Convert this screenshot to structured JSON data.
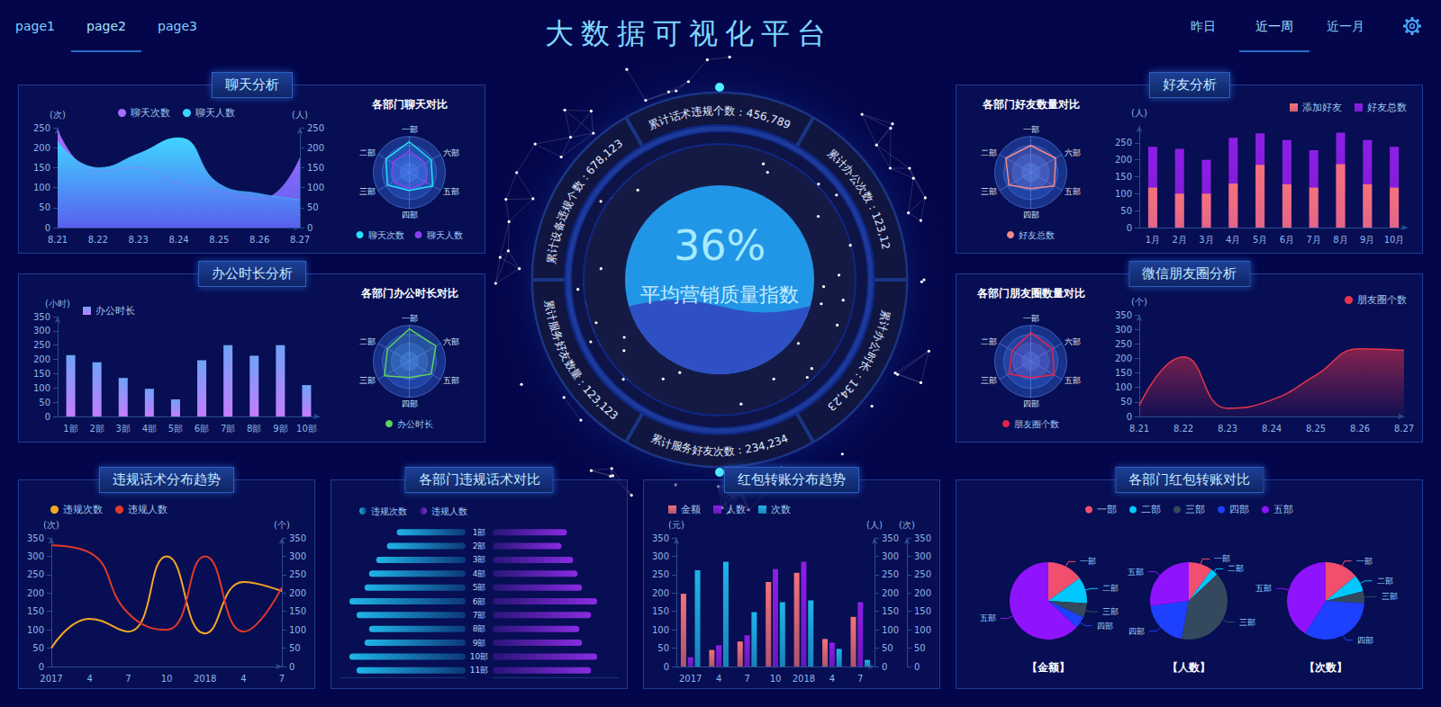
{
  "header": {
    "title": "大数据可视化平台",
    "pages": [
      "page1",
      "page2",
      "page3"
    ],
    "active_page": "page2",
    "ranges": [
      "昨日",
      "近一周",
      "近一月"
    ],
    "active_range": "近一周"
  },
  "center": {
    "value": 36,
    "value_label": "36%",
    "label": "平均营销质量指数",
    "ring": [
      "累计话术违规个数：456,789",
      "累计办公次数：123,12",
      "累计办公时长：134,23",
      "累计服务好友次数：234,234",
      "累计服务好友数量：123,123",
      "累计设备违规个数：678,123"
    ]
  },
  "chart_data": [
    {
      "type": "area",
      "title": "聊天分析",
      "categories": [
        "8.21",
        "8.22",
        "8.23",
        "8.24",
        "8.25",
        "8.26",
        "8.27"
      ],
      "ylabel": "(次)",
      "ylim": [
        0,
        250
      ],
      "yticks": [
        0,
        50,
        100,
        150,
        200,
        250
      ],
      "y2label": "(人)",
      "y2lim": [
        0,
        250
      ],
      "y2ticks": [
        0,
        50,
        100,
        150,
        200,
        250
      ],
      "series": [
        {
          "name": "聊天次数",
          "color": "#a66cff",
          "values": [
            245,
            140,
            150,
            110,
            90,
            70,
            175
          ]
        },
        {
          "name": "聊天人数",
          "color": "#3fd4ff",
          "axis": "y2",
          "values": [
            215,
            150,
            185,
            225,
            110,
            85,
            70
          ]
        }
      ],
      "legend": "top",
      "grid": false
    },
    {
      "type": "radar",
      "title": "各部门聊天对比",
      "indicators": [
        {
          "name": "一部",
          "max": 100
        },
        {
          "name": "二部",
          "max": 100
        },
        {
          "name": "三部",
          "max": 100
        },
        {
          "name": "四部",
          "max": 100
        },
        {
          "name": "五部",
          "max": 100
        },
        {
          "name": "六部",
          "max": 100
        }
      ],
      "series": [
        {
          "name": "聊天次数",
          "color": "#27e0ff",
          "values": [
            85,
            75,
            70,
            50,
            75,
            70
          ]
        },
        {
          "name": "聊天人数",
          "color": "#8a3cf0",
          "values": [
            60,
            55,
            50,
            45,
            55,
            50
          ]
        }
      ],
      "legend": "bottom"
    },
    {
      "type": "bar",
      "title": "办公时长分析",
      "categories": [
        "1部",
        "2部",
        "3部",
        "4部",
        "5部",
        "6部",
        "7部",
        "8部",
        "9部",
        "10部"
      ],
      "ylabel": "(小时)",
      "ylim": [
        0,
        350
      ],
      "yticks": [
        0,
        50,
        100,
        150,
        200,
        250,
        300,
        350
      ],
      "series": [
        {
          "name": "办公时长",
          "color": "#6fa3f7",
          "values": [
            215,
            190,
            135,
            97,
            60,
            197,
            250,
            213,
            250,
            110
          ]
        }
      ],
      "legend": "top-left",
      "grid": false
    },
    {
      "type": "radar",
      "title": "各部门办公时长对比",
      "indicators": [
        {
          "name": "一部",
          "max": 100
        },
        {
          "name": "二部",
          "max": 100
        },
        {
          "name": "三部",
          "max": 100
        },
        {
          "name": "四部",
          "max": 100
        },
        {
          "name": "五部",
          "max": 100
        },
        {
          "name": "六部",
          "max": 100
        }
      ],
      "series": [
        {
          "name": "办公时长",
          "color": "#5fd35f",
          "values": [
            90,
            70,
            80,
            45,
            70,
            85
          ]
        }
      ],
      "legend": "bottom"
    },
    {
      "type": "bar",
      "title": "好友分析",
      "categories": [
        "1月",
        "2月",
        "3月",
        "4月",
        "5月",
        "6月",
        "7月",
        "8月",
        "9月",
        "10月"
      ],
      "ylabel": "(人)",
      "ylim": [
        0,
        300
      ],
      "yticks": [
        0,
        50,
        100,
        150,
        200,
        250
      ],
      "series": [
        {
          "name": "添加好友",
          "color": "#f5727a",
          "values": [
            118,
            100,
            100,
            130,
            185,
            128,
            118,
            187,
            128,
            118
          ]
        },
        {
          "name": "好友总数",
          "color": "#8e1ee6",
          "values": [
            238,
            232,
            200,
            265,
            278,
            258,
            228,
            280,
            258,
            238
          ]
        }
      ],
      "stacked": false,
      "legend": "top-right",
      "grid": false
    },
    {
      "type": "radar",
      "title": "各部门好友数量对比",
      "indicators": [
        {
          "name": "一部",
          "max": 100
        },
        {
          "name": "二部",
          "max": 100
        },
        {
          "name": "三部",
          "max": 100
        },
        {
          "name": "四部",
          "max": 100
        },
        {
          "name": "五部",
          "max": 100
        },
        {
          "name": "六部",
          "max": 100
        }
      ],
      "series": [
        {
          "name": "好友总数",
          "color": "#f58a8a",
          "values": [
            75,
            80,
            70,
            45,
            75,
            80
          ]
        }
      ],
      "legend": "bottom"
    },
    {
      "type": "area",
      "title": "微信朋友圈分析",
      "categories": [
        "8.21",
        "8.22",
        "8.23",
        "8.24",
        "8.25",
        "8.26",
        "8.27"
      ],
      "ylabel": "(个)",
      "ylim": [
        0,
        350
      ],
      "yticks": [
        0,
        50,
        100,
        150,
        200,
        250,
        300,
        350
      ],
      "series": [
        {
          "name": "朋友圈个数",
          "color": "#e8334a",
          "values": [
            37,
            205,
            28,
            57,
            142,
            233,
            228
          ]
        }
      ],
      "legend": "top-right",
      "grid": false
    },
    {
      "type": "radar",
      "title": "各部门朋友圈数量对比",
      "indicators": [
        {
          "name": "一部",
          "max": 100
        },
        {
          "name": "二部",
          "max": 100
        },
        {
          "name": "三部",
          "max": 100
        },
        {
          "name": "四部",
          "max": 100
        },
        {
          "name": "五部",
          "max": 100
        },
        {
          "name": "六部",
          "max": 100
        }
      ],
      "series": [
        {
          "name": "朋友圈个数",
          "color": "#e8234a",
          "values": [
            80,
            60,
            70,
            45,
            75,
            70
          ]
        }
      ],
      "legend": "bottom"
    },
    {
      "type": "line",
      "title": "违规话术分布趋势",
      "categories": [
        "2017",
        "4",
        "7",
        "10",
        "2018",
        "4",
        "7"
      ],
      "ylabel": "(次)",
      "ylim": [
        0,
        350
      ],
      "yticks": [
        0,
        50,
        100,
        150,
        200,
        250,
        300,
        350
      ],
      "y2label": "(个)",
      "y2lim": [
        0,
        350
      ],
      "y2ticks": [
        0,
        50,
        100,
        150,
        200,
        250,
        300,
        350
      ],
      "series": [
        {
          "name": "违规次数",
          "color": "#f5a623",
          "values": [
            50,
            130,
            95,
            300,
            90,
            230,
            205
          ]
        },
        {
          "name": "违规人数",
          "color": "#e0392b",
          "axis": "y2",
          "values": [
            330,
            310,
            145,
            100,
            300,
            95,
            215
          ]
        }
      ],
      "line_style": "solid",
      "legend": "top-left",
      "grid": false
    },
    {
      "type": "bar",
      "title": "各部门违规话术对比",
      "orientation": "horizontal",
      "categories": [
        "1部",
        "2部",
        "3部",
        "4部",
        "5部",
        "6部",
        "7部",
        "8部",
        "9部",
        "10部",
        "11部"
      ],
      "xlim": [
        0,
        140
      ],
      "tick_labels": "y",
      "series": [
        {
          "name": "违规次数",
          "color": "#1fb5e8",
          "values": [
            77,
            88,
            100,
            108,
            113,
            130,
            122,
            108,
            113,
            130,
            122
          ]
        },
        {
          "name": "违规人数",
          "color": "#8a2be2",
          "values": [
            83,
            77,
            90,
            95,
            100,
            117,
            110,
            97,
            100,
            117,
            110
          ]
        }
      ],
      "legend": "top-left",
      "grid": false
    },
    {
      "type": "bar",
      "title": "红包转账分布趋势",
      "categories": [
        "2017",
        "4",
        "7",
        "10",
        "2018",
        "4",
        "7"
      ],
      "ylabel": "(元)",
      "ylim": [
        0,
        350
      ],
      "yticks": [
        0,
        50,
        100,
        150,
        200,
        250,
        300,
        350
      ],
      "y2label": "(人)",
      "y2lim": [
        0,
        350
      ],
      "y2ticks": [
        0,
        50,
        100,
        150,
        200,
        250,
        300,
        350
      ],
      "y3label": "(次)",
      "y3lim": [
        0,
        350
      ],
      "y3ticks": [
        0,
        50,
        100,
        150,
        200,
        250,
        300,
        350
      ],
      "series": [
        {
          "name": "金额",
          "color": "#f5727a",
          "values": [
            198,
            45,
            68,
            230,
            255,
            75,
            135
          ]
        },
        {
          "name": "人数",
          "color": "#8e1ee6",
          "axis": "y2",
          "values": [
            25,
            58,
            85,
            265,
            285,
            65,
            175
          ]
        },
        {
          "name": "次数",
          "color": "#1fb5e8",
          "axis": "y3",
          "values": [
            262,
            285,
            148,
            175,
            180,
            48,
            18
          ]
        }
      ],
      "legend": "top-left",
      "grid": false
    },
    {
      "type": "pie",
      "title": "各部门红包转账对比",
      "categories": [
        "一部",
        "二部",
        "三部",
        "四部",
        "五部"
      ],
      "colors": [
        "#f24e6e",
        "#00c8ff",
        "#34495e",
        "#1e40ff",
        "#9013fe"
      ],
      "pies": [
        {
          "label": "【金额】",
          "values": [
            15,
            11,
            6,
            5,
            63
          ]
        },
        {
          "label": "【人数】",
          "values": [
            10,
            3,
            40,
            20,
            27
          ]
        },
        {
          "label": "【次数】",
          "values": [
            14,
            7,
            5,
            33,
            41
          ]
        }
      ],
      "legend": "top"
    }
  ]
}
